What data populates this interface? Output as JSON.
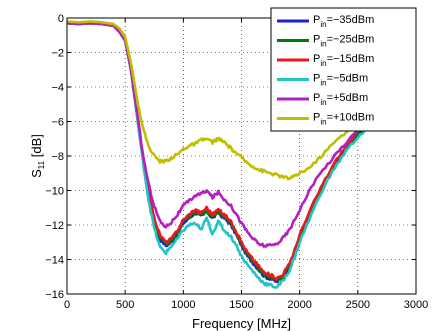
{
  "chart_data": {
    "type": "line",
    "xlabel": "Frequency [MHz]",
    "ylabel_main": "S",
    "ylabel_sub": "11",
    "ylabel_unit": " [dB]",
    "xlim": [
      0,
      3000
    ],
    "ylim": [
      -16,
      0
    ],
    "xticks": [
      0,
      500,
      1000,
      1500,
      2000,
      2500,
      3000
    ],
    "yticks": [
      0,
      -2,
      -4,
      -6,
      -8,
      -10,
      -12,
      -14,
      -16
    ],
    "grid": true,
    "grid_style": "dotted",
    "legend_position": "top-right",
    "series": [
      {
        "name": "in=−35dBm",
        "label_main": "P",
        "label_sub": "in",
        "label_rest": "=−35dBm",
        "color": "#1f1fd6",
        "x": [
          0,
          100,
          200,
          300,
          400,
          450,
          500,
          550,
          600,
          650,
          700,
          750,
          800,
          850,
          900,
          950,
          1000,
          1050,
          1100,
          1150,
          1200,
          1250,
          1300,
          1350,
          1400,
          1450,
          1500,
          1550,
          1600,
          1650,
          1700,
          1750,
          1800,
          1850,
          1900,
          1950,
          2000,
          2100,
          2200,
          2300,
          2400,
          2500,
          2600,
          2700,
          2800,
          2900,
          3000
        ],
        "y": [
          -0.3,
          -0.35,
          -0.3,
          -0.35,
          -0.45,
          -0.8,
          -1.3,
          -3.0,
          -5.5,
          -8.0,
          -10.2,
          -11.8,
          -12.8,
          -13.2,
          -13.0,
          -12.5,
          -11.9,
          -11.6,
          -11.3,
          -11.5,
          -11.2,
          -11.6,
          -11.3,
          -11.6,
          -11.9,
          -12.5,
          -13.2,
          -13.8,
          -14.2,
          -14.6,
          -15.0,
          -15.1,
          -15.3,
          -15.1,
          -14.6,
          -13.8,
          -12.8,
          -11.2,
          -9.8,
          -8.6,
          -7.6,
          -6.8,
          -6.2,
          -5.8,
          -5.6,
          -5.4,
          -5.1
        ]
      },
      {
        "name": "in=−25dBm",
        "label_main": "P",
        "label_sub": "in",
        "label_rest": "=−25dBm",
        "color": "#007a00",
        "x": [
          0,
          100,
          200,
          300,
          400,
          450,
          500,
          550,
          600,
          650,
          700,
          750,
          800,
          850,
          900,
          950,
          1000,
          1050,
          1100,
          1150,
          1200,
          1250,
          1300,
          1350,
          1400,
          1450,
          1500,
          1550,
          1600,
          1650,
          1700,
          1750,
          1800,
          1850,
          1900,
          1950,
          2000,
          2100,
          2200,
          2300,
          2400,
          2500,
          2600,
          2700,
          2800,
          2900,
          3000
        ],
        "y": [
          -0.3,
          -0.35,
          -0.3,
          -0.35,
          -0.45,
          -0.8,
          -1.3,
          -3.0,
          -5.5,
          -8.0,
          -10.1,
          -11.7,
          -12.7,
          -13.1,
          -12.9,
          -12.4,
          -11.8,
          -11.5,
          -11.3,
          -11.4,
          -11.2,
          -11.5,
          -11.2,
          -11.5,
          -11.8,
          -12.4,
          -13.1,
          -13.7,
          -14.1,
          -14.5,
          -14.9,
          -15.0,
          -15.2,
          -15.0,
          -14.5,
          -13.7,
          -12.7,
          -11.1,
          -9.7,
          -8.5,
          -7.5,
          -6.7,
          -6.1,
          -5.7,
          -5.5,
          -5.3,
          -5.0
        ]
      },
      {
        "name": "in=−15dBm",
        "label_main": "P",
        "label_sub": "in",
        "label_rest": "=−15dBm",
        "color": "#e41a1c",
        "x": [
          0,
          100,
          200,
          300,
          400,
          450,
          500,
          550,
          600,
          650,
          700,
          750,
          800,
          850,
          900,
          950,
          1000,
          1050,
          1100,
          1150,
          1200,
          1250,
          1300,
          1350,
          1400,
          1450,
          1500,
          1550,
          1600,
          1650,
          1700,
          1750,
          1800,
          1850,
          1900,
          1950,
          2000,
          2100,
          2200,
          2300,
          2400,
          2500,
          2600,
          2700,
          2800,
          2900,
          3000
        ],
        "y": [
          -0.3,
          -0.35,
          -0.3,
          -0.35,
          -0.45,
          -0.8,
          -1.3,
          -3.0,
          -5.5,
          -8.0,
          -10.0,
          -11.6,
          -12.6,
          -13.0,
          -12.8,
          -12.3,
          -11.7,
          -11.4,
          -11.1,
          -11.3,
          -11.0,
          -11.4,
          -11.1,
          -11.4,
          -11.7,
          -12.3,
          -13.0,
          -13.6,
          -14.0,
          -14.4,
          -14.8,
          -14.9,
          -15.1,
          -14.9,
          -14.4,
          -13.6,
          -12.6,
          -11.0,
          -9.6,
          -8.4,
          -7.4,
          -6.6,
          -6.0,
          -5.6,
          -5.4,
          -5.2,
          -4.9
        ]
      },
      {
        "name": "in=−5dBm",
        "label_main": "P",
        "label_sub": "in",
        "label_rest": "=−5dBm",
        "color": "#22c3c3",
        "x": [
          0,
          100,
          200,
          300,
          400,
          450,
          500,
          550,
          600,
          650,
          700,
          750,
          800,
          850,
          900,
          950,
          1000,
          1050,
          1100,
          1150,
          1200,
          1250,
          1300,
          1350,
          1400,
          1450,
          1500,
          1550,
          1600,
          1650,
          1700,
          1750,
          1800,
          1850,
          1900,
          1950,
          2000,
          2100,
          2200,
          2300,
          2400,
          2500,
          2600,
          2700,
          2800,
          2900,
          3000
        ],
        "y": [
          -0.3,
          -0.35,
          -0.3,
          -0.35,
          -0.45,
          -0.8,
          -1.3,
          -3.0,
          -5.6,
          -8.2,
          -10.5,
          -12.2,
          -13.3,
          -13.6,
          -13.2,
          -12.8,
          -12.3,
          -12.0,
          -11.9,
          -12.3,
          -11.6,
          -12.5,
          -11.8,
          -12.3,
          -12.6,
          -13.1,
          -13.8,
          -14.3,
          -14.7,
          -15.1,
          -15.4,
          -15.5,
          -15.6,
          -15.3,
          -14.8,
          -14.0,
          -13.0,
          -11.4,
          -9.9,
          -8.7,
          -7.7,
          -6.9,
          -6.3,
          -5.9,
          -5.7,
          -5.5,
          -5.2
        ]
      },
      {
        "name": "in=+5dBm",
        "label_main": "P",
        "label_sub": "in",
        "label_rest": "=+5dBm",
        "color": "#b51fbf",
        "x": [
          0,
          100,
          200,
          300,
          400,
          450,
          500,
          550,
          600,
          650,
          700,
          750,
          800,
          850,
          900,
          950,
          1000,
          1050,
          1100,
          1150,
          1200,
          1250,
          1300,
          1350,
          1400,
          1450,
          1500,
          1550,
          1600,
          1650,
          1700,
          1750,
          1800,
          1850,
          1900,
          1950,
          2000,
          2100,
          2200,
          2300,
          2400,
          2500,
          2600,
          2700,
          2800,
          2900,
          3000
        ],
        "y": [
          -0.3,
          -0.35,
          -0.3,
          -0.35,
          -0.45,
          -0.8,
          -1.3,
          -3.0,
          -5.4,
          -7.8,
          -9.6,
          -10.9,
          -11.8,
          -12.1,
          -11.8,
          -11.4,
          -10.9,
          -10.6,
          -10.3,
          -10.2,
          -10.0,
          -10.4,
          -10.1,
          -10.5,
          -10.8,
          -11.3,
          -11.9,
          -12.4,
          -12.8,
          -13.1,
          -13.2,
          -13.2,
          -13.1,
          -12.8,
          -12.4,
          -11.8,
          -11.1,
          -9.8,
          -8.8,
          -8.0,
          -7.2,
          -6.5,
          -5.8,
          -5.4,
          -5.1,
          -4.9,
          -4.6
        ]
      },
      {
        "name": "in=+10dBm",
        "label_main": "P",
        "label_sub": "in",
        "label_rest": "=+10dBm",
        "color": "#bfbf00",
        "x": [
          0,
          100,
          200,
          300,
          400,
          450,
          500,
          550,
          600,
          650,
          700,
          750,
          800,
          850,
          900,
          950,
          1000,
          1050,
          1100,
          1150,
          1200,
          1250,
          1300,
          1350,
          1400,
          1450,
          1500,
          1550,
          1600,
          1650,
          1700,
          1750,
          1800,
          1850,
          1900,
          1950,
          2000,
          2100,
          2200,
          2300,
          2400,
          2500,
          2600,
          2700,
          2800,
          2900,
          3000
        ],
        "y": [
          -0.2,
          -0.25,
          -0.2,
          -0.25,
          -0.35,
          -0.6,
          -1.1,
          -2.6,
          -4.6,
          -6.3,
          -7.4,
          -8.0,
          -8.3,
          -8.3,
          -8.1,
          -7.9,
          -7.6,
          -7.4,
          -7.3,
          -7.1,
          -7.0,
          -7.2,
          -7.0,
          -7.2,
          -7.5,
          -7.8,
          -8.1,
          -8.4,
          -8.6,
          -8.8,
          -8.9,
          -9.0,
          -9.1,
          -9.2,
          -9.3,
          -9.2,
          -9.0,
          -8.6,
          -7.9,
          -7.2,
          -6.6,
          -6.0,
          -5.5,
          -5.2,
          -5.0,
          -4.8,
          -4.5
        ]
      }
    ]
  }
}
